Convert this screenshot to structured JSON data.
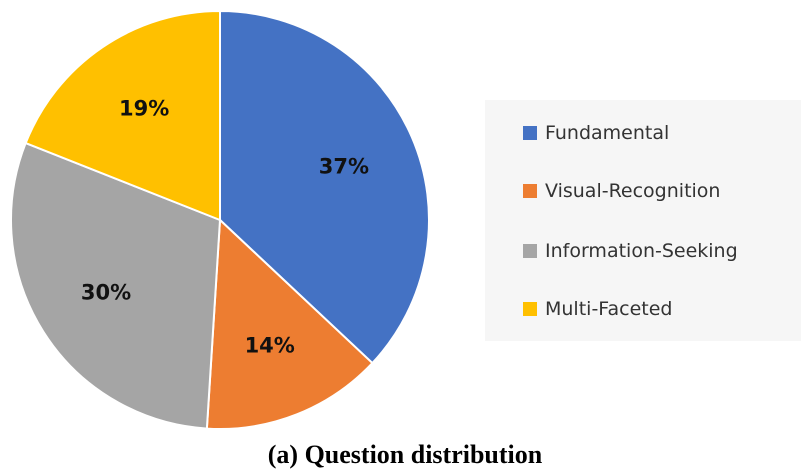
{
  "chart_data": {
    "type": "pie",
    "categories": [
      "Fundamental",
      "Visual-Recognition",
      "Information-Seeking",
      "Multi-Faceted"
    ],
    "values": [
      37,
      14,
      30,
      19
    ],
    "data_labels": [
      "37%",
      "14%",
      "30%",
      "19%"
    ],
    "colors": [
      "#4472c4",
      "#ed7d31",
      "#a5a5a5",
      "#ffc000"
    ],
    "legend_position": "right",
    "caption": "(a) Question distribution"
  }
}
